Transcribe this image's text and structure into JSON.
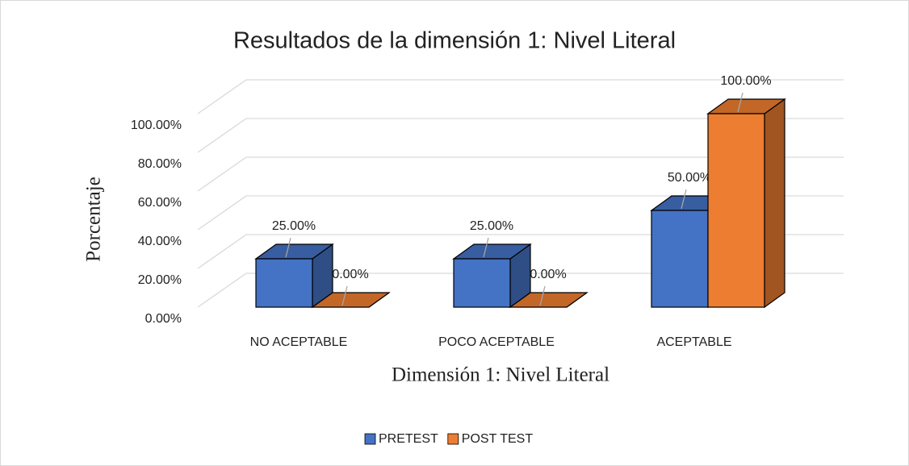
{
  "chart_data": {
    "type": "bar3d",
    "title": "Resultados de la dimensión 1: Nivel Literal",
    "x_label": "Dimensión 1: Nivel Literal",
    "y_label": "Porcentaje",
    "categories": [
      "NO ACEPTABLE",
      "POCO ACEPTABLE",
      "ACEPTABLE"
    ],
    "series": [
      {
        "name": "PRETEST",
        "color": "#4472c4",
        "values": [
          25,
          25,
          50
        ],
        "value_labels": [
          "25.00%",
          "25.00%",
          "50.00%"
        ]
      },
      {
        "name": "POST TEST",
        "color": "#ed7d31",
        "values": [
          0,
          0,
          100
        ],
        "value_labels": [
          "0.00%",
          "0.00%",
          "100.00%"
        ]
      }
    ],
    "ylim": [
      0,
      100
    ],
    "yticks": [
      {
        "value": 0,
        "label": "0.00%"
      },
      {
        "value": 20,
        "label": "20.00%"
      },
      {
        "value": 40,
        "label": "40.00%"
      },
      {
        "value": 60,
        "label": "60.00%"
      },
      {
        "value": 80,
        "label": "80.00%"
      },
      {
        "value": 100,
        "label": "100.00%"
      }
    ],
    "grid": true,
    "legend": "bottom"
  }
}
